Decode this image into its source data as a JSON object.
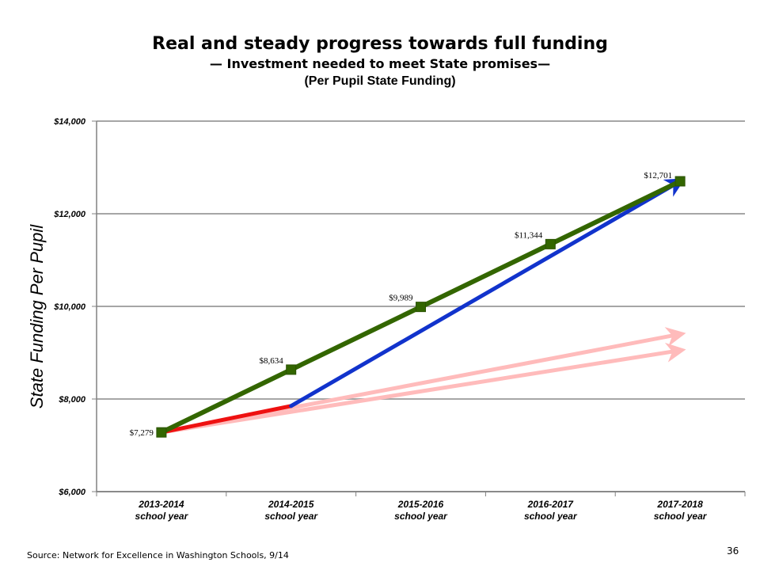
{
  "slide": {
    "title": "Real and steady progress towards full funding",
    "subtitle": "— Investment needed to meet State promises—",
    "subtitle2": "(Per Pupil State Funding)",
    "source": "Source: Network for Excellence in Washington Schools, 9/14",
    "page_number": "36"
  },
  "chart_data": {
    "type": "line",
    "ylabel": "State   Funding   Per   Pupil",
    "ylim": [
      6000,
      14000
    ],
    "yticks": [
      6000,
      8000,
      10000,
      12000,
      14000
    ],
    "ytick_labels": [
      "$6,000",
      "$8,000",
      "$10,000",
      "$12,000",
      "$14,000"
    ],
    "categories": [
      [
        "2013-2014",
        "school year"
      ],
      [
        "2014-2015",
        "school year"
      ],
      [
        "2015-2016",
        "school year"
      ],
      [
        "2016-2017",
        "school year"
      ],
      [
        "2017-2018",
        "school year"
      ]
    ],
    "grid": true,
    "series": [
      {
        "values": [
          7279,
          8634,
          9989,
          11344,
          12701
        ],
        "labels": [
          "$7,279",
          "$8,634",
          "$9,989",
          "$11,344",
          "$12,701"
        ],
        "color": "#336600",
        "marker": "square"
      }
    ],
    "arrows": [
      {
        "from": [
          0,
          7279
        ],
        "to": [
          1,
          7850
        ],
        "color": "#ee1111"
      },
      {
        "from": [
          1,
          7850
        ],
        "to": [
          4,
          12701
        ],
        "color": "#1133cc"
      },
      {
        "from": [
          0,
          7279
        ],
        "to": [
          4,
          9400
        ],
        "color": "#ffbbbb"
      },
      {
        "from": [
          0,
          7279
        ],
        "to": [
          4,
          9050
        ],
        "color": "#ffbbbb"
      }
    ],
    "colors": {
      "grid": "#a6a6a6",
      "axis": "#808080",
      "tick_label": "#000000"
    }
  }
}
